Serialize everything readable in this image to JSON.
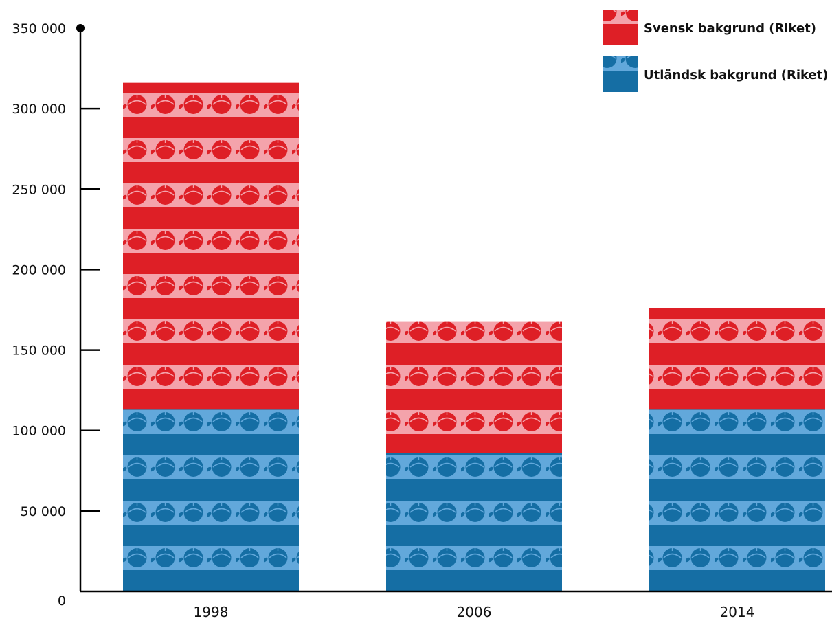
{
  "chart_data": {
    "type": "bar",
    "stacked": true,
    "categories": [
      "1998",
      "2006",
      "2014"
    ],
    "series": [
      {
        "name": "Utländsk bakgrund (Riket)",
        "values": [
          113000,
          86000,
          113000
        ]
      },
      {
        "name": "Svensk bakgrund (Riket)",
        "values": [
          203000,
          81500,
          63000
        ]
      }
    ],
    "ylim": [
      0,
      350000
    ],
    "yticks": [
      0,
      50000,
      100000,
      150000,
      200000,
      250000,
      300000,
      350000
    ],
    "ytick_labels": [
      "0",
      "50 000",
      "100 000",
      "150 000",
      "200 000",
      "250 000",
      "300 000",
      "350 000"
    ],
    "grid": false,
    "legend_placement": "top-right",
    "colors": {
      "Svensk bakgrund (Riket)": {
        "dark": "#de1f26",
        "light": "#f4a3ab"
      },
      "Utländsk bakgrund (Riket)": {
        "dark": "#156ea4",
        "light": "#62a8db"
      }
    }
  }
}
